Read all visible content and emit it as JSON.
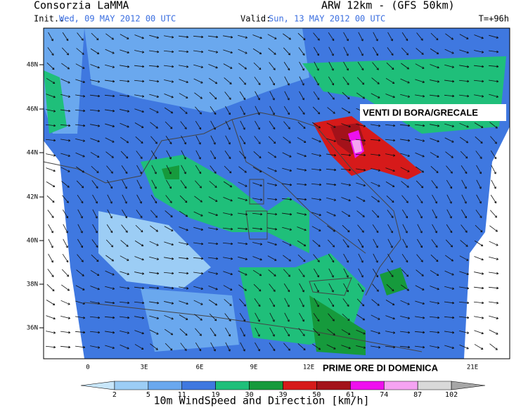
{
  "header": {
    "title": "Consorzia LaMMA",
    "model": "ARW 12km - (GFS 50km)",
    "init_label": "Init.:",
    "init": "Wed, 09 MAY 2012  00 UTC",
    "valid_label": "Valid:",
    "valid": "Sun, 13 MAY 2012  00 UTC",
    "lead": "T=+96h"
  },
  "map": {
    "lat_labels": [
      "48N",
      "46N",
      "44N",
      "42N",
      "40N",
      "38N",
      "36N"
    ],
    "lon_labels": [
      "0",
      "3E",
      "6E",
      "9E",
      "12E",
      "21E"
    ],
    "annotations": [
      "VENTI DI BORA/GRECALE",
      "PRIME ORE DI DOMENICA"
    ]
  },
  "colorbar": {
    "levels": [
      2,
      5,
      11,
      19,
      30,
      39,
      50,
      61,
      74,
      87,
      102
    ],
    "colors": [
      "#c8e6fa",
      "#9ccdf5",
      "#6aa8ee",
      "#3f78e0",
      "#1fbf7a",
      "#169a3c",
      "#d61a1a",
      "#a3121a",
      "#ee10ee",
      "#f5a3f2",
      "#d9d9d9",
      "#a6a6a6"
    ],
    "caption": "10m WindSpeed and Direction [km/h]"
  }
}
